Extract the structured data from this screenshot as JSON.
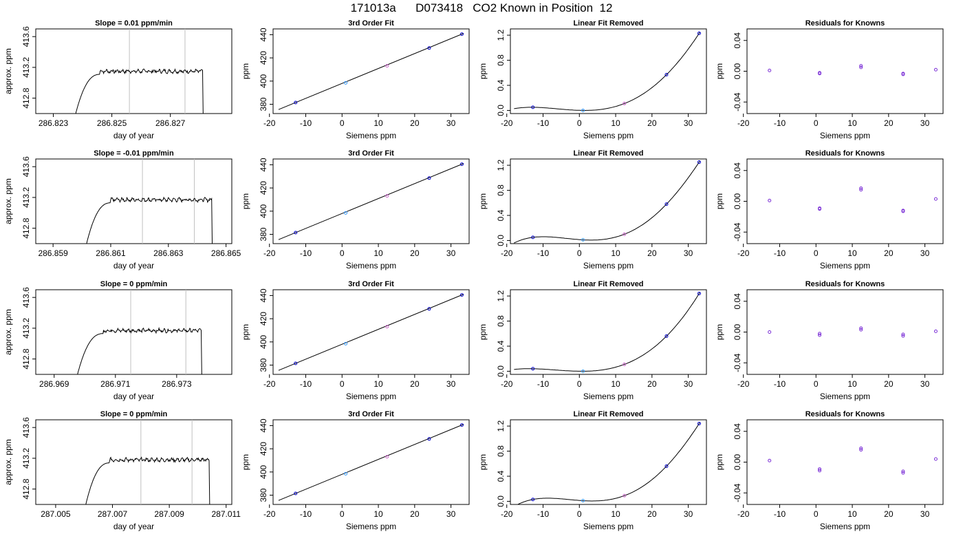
{
  "title": "171013a      D073418   CO2 Known in Position  12",
  "colors": {
    "trace": "#000000",
    "vline": "#c0c0c0",
    "known_blue": "#0000cc",
    "known_light": "#3399ff",
    "known_purple": "#7b2fd6",
    "known_pink": "#cc66cc",
    "residual": "#7b2fd6"
  },
  "chart_data": [
    {
      "type": "line",
      "row": 0,
      "col": 0,
      "title": "Slope =  0.01  ppm/min",
      "xlabel": "day of year",
      "ylabel": "approx. ppm",
      "xlim": [
        286.8224,
        286.8291
      ],
      "ylim": [
        412.6,
        413.7
      ],
      "xticks": [
        286.823,
        286.825,
        286.827
      ],
      "xtick_labels": [
        "286.823",
        "286.825",
        "286.827"
      ],
      "yticks": [
        412.8,
        413.2,
        413.6
      ],
      "ytick_labels": [
        "412.8",
        "413.2",
        "413.6"
      ],
      "vlines": [
        286.8256,
        286.8275
      ],
      "rise_start": 286.8237,
      "plateau_start": 286.8246,
      "fall": 286.8281,
      "plateau": 413.15
    },
    {
      "type": "line",
      "row": 0,
      "col": 1,
      "title": "3rd Order Fit",
      "xlabel": "Siemens ppm",
      "ylabel": "ppm",
      "xlim": [
        -19,
        35
      ],
      "ylim": [
        372,
        445
      ],
      "xticks": [
        -20,
        -10,
        0,
        10,
        20,
        30
      ],
      "xtick_labels": [
        "-20",
        "-10",
        "0",
        "10",
        "20",
        "30"
      ],
      "yticks": [
        380,
        400,
        420,
        440
      ],
      "ytick_labels": [
        "380",
        "400",
        "420",
        "440"
      ],
      "points": [
        {
          "x": -12.8,
          "y": 381.5
        },
        {
          "x": 1,
          "y": 398.5
        },
        {
          "x": 12.4,
          "y": 413.2
        },
        {
          "x": 24,
          "y": 428.5
        },
        {
          "x": 33,
          "y": 440.5
        }
      ],
      "fit": "linear"
    },
    {
      "type": "line",
      "row": 0,
      "col": 2,
      "title": "Linear Fit Removed",
      "xlabel": "Siemens ppm",
      "ylabel": "ppm",
      "xlim": [
        -19,
        35
      ],
      "ylim": [
        -0.05,
        1.3
      ],
      "xticks": [
        -20,
        -10,
        0,
        10,
        20,
        30
      ],
      "xtick_labels": [
        "-20",
        "-10",
        "0",
        "10",
        "20",
        "30"
      ],
      "yticks": [
        0,
        0.4,
        0.8,
        1.2
      ],
      "ytick_labels": [
        "0.0",
        "0.4",
        "0.8",
        "1.2"
      ],
      "points": [
        {
          "x": -12.8,
          "y": 0.05
        },
        {
          "x": 1,
          "y": 0.0
        },
        {
          "x": 12.4,
          "y": 0.11
        },
        {
          "x": 24,
          "y": 0.57
        },
        {
          "x": 33,
          "y": 1.23
        }
      ],
      "fit": "curve"
    },
    {
      "type": "scatter",
      "row": 0,
      "col": 3,
      "title": "Residuals for Knowns",
      "xlabel": "Siemens ppm",
      "ylabel": "ppm",
      "xlim": [
        -19,
        35
      ],
      "ylim": [
        -0.055,
        0.055
      ],
      "xticks": [
        -20,
        -10,
        0,
        10,
        20,
        30
      ],
      "xtick_labels": [
        "-20",
        "-10",
        "0",
        "10",
        "20",
        "30"
      ],
      "yticks": [
        -0.04,
        0,
        0.04
      ],
      "ytick_labels": [
        "-0.04",
        "0.00",
        "0.04"
      ],
      "points": [
        {
          "x": -12.8,
          "y": 0.001
        },
        {
          "x": 1,
          "y": -0.002
        },
        {
          "x": 1,
          "y": -0.003
        },
        {
          "x": 12.4,
          "y": 0.005
        },
        {
          "x": 12.4,
          "y": 0.007
        },
        {
          "x": 24,
          "y": -0.003
        },
        {
          "x": 24,
          "y": -0.004
        },
        {
          "x": 33,
          "y": 0.002
        }
      ]
    },
    {
      "type": "line",
      "row": 1,
      "col": 0,
      "title": "Slope =  -0.01  ppm/min",
      "xlabel": "day of year",
      "ylabel": "approx. ppm",
      "xlim": [
        286.8584,
        286.8652
      ],
      "ylim": [
        412.6,
        413.7
      ],
      "xticks": [
        286.859,
        286.861,
        286.863,
        286.865
      ],
      "xtick_labels": [
        "286.859",
        "286.861",
        "286.863",
        "286.865"
      ],
      "yticks": [
        412.8,
        413.2,
        413.6
      ],
      "ytick_labels": [
        "412.8",
        "413.2",
        "413.6"
      ],
      "vlines": [
        286.8621,
        286.8639
      ],
      "rise_start": 286.8601,
      "plateau_start": 286.861,
      "fall": 286.8645,
      "plateau": 413.17
    },
    {
      "type": "line",
      "row": 1,
      "col": 1,
      "title": "3rd Order Fit",
      "xlabel": "Siemens ppm",
      "ylabel": "ppm",
      "xlim": [
        -19,
        35
      ],
      "ylim": [
        372,
        445
      ],
      "xticks": [
        -20,
        -10,
        0,
        10,
        20,
        30
      ],
      "xtick_labels": [
        "-20",
        "-10",
        "0",
        "10",
        "20",
        "30"
      ],
      "yticks": [
        380,
        400,
        420,
        440
      ],
      "ytick_labels": [
        "380",
        "400",
        "420",
        "440"
      ],
      "points": [
        {
          "x": -12.8,
          "y": 381.5
        },
        {
          "x": 1,
          "y": 398.5
        },
        {
          "x": 12.4,
          "y": 413.2
        },
        {
          "x": 24,
          "y": 428.5
        },
        {
          "x": 33,
          "y": 440.5
        }
      ],
      "fit": "linear"
    },
    {
      "type": "line",
      "row": 1,
      "col": 2,
      "title": "Linear Fit Removed",
      "xlabel": "Siemens ppm",
      "ylabel": "ppm",
      "xlim": [
        -19,
        35
      ],
      "ylim": [
        -0.05,
        1.3
      ],
      "xticks": [
        -20,
        -10,
        0,
        10,
        20,
        30
      ],
      "xtick_labels": [
        "-20",
        "-10",
        "0",
        "10",
        "20",
        "30"
      ],
      "yticks": [
        0,
        0.4,
        0.8,
        1.2
      ],
      "ytick_labels": [
        "0.0",
        "0.4",
        "0.8",
        "1.2"
      ],
      "points": [
        {
          "x": -12.8,
          "y": 0.05
        },
        {
          "x": 1,
          "y": 0.01
        },
        {
          "x": 12.4,
          "y": 0.1
        },
        {
          "x": 24,
          "y": 0.58
        },
        {
          "x": 33,
          "y": 1.25
        }
      ],
      "fit": "curve"
    },
    {
      "type": "scatter",
      "row": 1,
      "col": 3,
      "title": "Residuals for Knowns",
      "xlabel": "Siemens ppm",
      "ylabel": "ppm",
      "xlim": [
        -19,
        35
      ],
      "ylim": [
        -0.055,
        0.055
      ],
      "xticks": [
        -20,
        -10,
        0,
        10,
        20,
        30
      ],
      "xtick_labels": [
        "-20",
        "-10",
        "0",
        "10",
        "20",
        "30"
      ],
      "yticks": [
        -0.04,
        0,
        0.04
      ],
      "ytick_labels": [
        "-0.04",
        "0.00",
        "0.04"
      ],
      "points": [
        {
          "x": -12.8,
          "y": 0.001
        },
        {
          "x": 1,
          "y": -0.009
        },
        {
          "x": 1,
          "y": -0.01
        },
        {
          "x": 12.4,
          "y": 0.015
        },
        {
          "x": 12.4,
          "y": 0.017
        },
        {
          "x": 24,
          "y": -0.012
        },
        {
          "x": 24,
          "y": -0.013
        },
        {
          "x": 33,
          "y": 0.003
        }
      ]
    },
    {
      "type": "line",
      "row": 2,
      "col": 0,
      "title": "Slope =  0  ppm/min",
      "xlabel": "day of year",
      "ylabel": "approx. ppm",
      "xlim": [
        286.9684,
        286.9748
      ],
      "ylim": [
        412.6,
        413.7
      ],
      "xticks": [
        286.969,
        286.971,
        286.973
      ],
      "xtick_labels": [
        "286.969",
        "286.971",
        "286.973"
      ],
      "yticks": [
        412.8,
        413.2,
        413.6
      ],
      "ytick_labels": [
        "412.8",
        "413.2",
        "413.6"
      ],
      "vlines": [
        286.9715,
        286.9733
      ],
      "rise_start": 286.9697,
      "plateau_start": 286.9706,
      "fall": 286.9738,
      "plateau": 413.17
    },
    {
      "type": "line",
      "row": 2,
      "col": 1,
      "title": "3rd Order Fit",
      "xlabel": "Siemens ppm",
      "ylabel": "ppm",
      "xlim": [
        -19,
        35
      ],
      "ylim": [
        372,
        445
      ],
      "xticks": [
        -20,
        -10,
        0,
        10,
        20,
        30
      ],
      "xtick_labels": [
        "-20",
        "-10",
        "0",
        "10",
        "20",
        "30"
      ],
      "yticks": [
        380,
        400,
        420,
        440
      ],
      "ytick_labels": [
        "380",
        "400",
        "420",
        "440"
      ],
      "points": [
        {
          "x": -12.8,
          "y": 381.5
        },
        {
          "x": 1,
          "y": 398.5
        },
        {
          "x": 12.4,
          "y": 413.2
        },
        {
          "x": 24,
          "y": 428.5
        },
        {
          "x": 33,
          "y": 440.5
        }
      ],
      "fit": "linear"
    },
    {
      "type": "line",
      "row": 2,
      "col": 2,
      "title": "Linear Fit Removed",
      "xlabel": "Siemens ppm",
      "ylabel": "ppm",
      "xlim": [
        -19,
        35
      ],
      "ylim": [
        -0.05,
        1.3
      ],
      "xticks": [
        -20,
        -10,
        0,
        10,
        20,
        30
      ],
      "xtick_labels": [
        "-20",
        "-10",
        "0",
        "10",
        "20",
        "30"
      ],
      "yticks": [
        0,
        0.4,
        0.8,
        1.2
      ],
      "ytick_labels": [
        "0.0",
        "0.4",
        "0.8",
        "1.2"
      ],
      "points": [
        {
          "x": -12.8,
          "y": 0.04
        },
        {
          "x": 1,
          "y": 0.0
        },
        {
          "x": 12.4,
          "y": 0.11
        },
        {
          "x": 24,
          "y": 0.56
        },
        {
          "x": 33,
          "y": 1.24
        }
      ],
      "fit": "curve"
    },
    {
      "type": "scatter",
      "row": 2,
      "col": 3,
      "title": "Residuals for Knowns",
      "xlabel": "Siemens ppm",
      "ylabel": "ppm",
      "xlim": [
        -19,
        35
      ],
      "ylim": [
        -0.055,
        0.055
      ],
      "xticks": [
        -20,
        -10,
        0,
        10,
        20,
        30
      ],
      "xtick_labels": [
        "-20",
        "-10",
        "0",
        "10",
        "20",
        "30"
      ],
      "yticks": [
        -0.04,
        0,
        0.04
      ],
      "ytick_labels": [
        "-0.04",
        "0.00",
        "0.04"
      ],
      "points": [
        {
          "x": -12.8,
          "y": 0.0
        },
        {
          "x": 1,
          "y": -0.002
        },
        {
          "x": 1,
          "y": -0.004
        },
        {
          "x": 12.4,
          "y": 0.003
        },
        {
          "x": 12.4,
          "y": 0.005
        },
        {
          "x": 24,
          "y": -0.003
        },
        {
          "x": 24,
          "y": -0.005
        },
        {
          "x": 33,
          "y": 0.001
        }
      ]
    },
    {
      "type": "line",
      "row": 3,
      "col": 0,
      "title": "Slope =  0  ppm/min",
      "xlabel": "day of year",
      "ylabel": "approx. ppm",
      "xlim": [
        287.0043,
        287.0112
      ],
      "ylim": [
        412.6,
        413.7
      ],
      "xticks": [
        287.005,
        287.007,
        287.009,
        287.011
      ],
      "xtick_labels": [
        "287.005",
        "287.007",
        "287.009",
        "287.011"
      ],
      "yticks": [
        412.8,
        413.2,
        413.6
      ],
      "ytick_labels": [
        "412.8",
        "413.2",
        "413.6"
      ],
      "vlines": [
        287.008,
        287.0098
      ],
      "rise_start": 287.006,
      "plateau_start": 287.0069,
      "fall": 287.0104,
      "plateau": 413.18
    },
    {
      "type": "line",
      "row": 3,
      "col": 1,
      "title": "3rd Order Fit",
      "xlabel": "Siemens ppm",
      "ylabel": "ppm",
      "xlim": [
        -19,
        35
      ],
      "ylim": [
        372,
        445
      ],
      "xticks": [
        -20,
        -10,
        0,
        10,
        20,
        30
      ],
      "xtick_labels": [
        "-20",
        "-10",
        "0",
        "10",
        "20",
        "30"
      ],
      "yticks": [
        380,
        400,
        420,
        440
      ],
      "ytick_labels": [
        "380",
        "400",
        "420",
        "440"
      ],
      "points": [
        {
          "x": -12.8,
          "y": 381.5
        },
        {
          "x": 1,
          "y": 398.5
        },
        {
          "x": 12.4,
          "y": 413.2
        },
        {
          "x": 24,
          "y": 428.5
        },
        {
          "x": 33,
          "y": 440.5
        }
      ],
      "fit": "linear"
    },
    {
      "type": "line",
      "row": 3,
      "col": 2,
      "title": "Linear Fit Removed",
      "xlabel": "Siemens ppm",
      "ylabel": "ppm",
      "xlim": [
        -19,
        35
      ],
      "ylim": [
        -0.05,
        1.3
      ],
      "xticks": [
        -20,
        -10,
        0,
        10,
        20,
        30
      ],
      "xtick_labels": [
        "-20",
        "-10",
        "0",
        "10",
        "20",
        "30"
      ],
      "yticks": [
        0,
        0.4,
        0.8,
        1.2
      ],
      "ytick_labels": [
        "0.0",
        "0.4",
        "0.8",
        "1.2"
      ],
      "points": [
        {
          "x": -12.8,
          "y": 0.03
        },
        {
          "x": 1,
          "y": 0.01
        },
        {
          "x": 12.4,
          "y": 0.09
        },
        {
          "x": 24,
          "y": 0.56
        },
        {
          "x": 33,
          "y": 1.24
        }
      ],
      "fit": "curve"
    },
    {
      "type": "scatter",
      "row": 3,
      "col": 3,
      "title": "Residuals for Knowns",
      "xlabel": "Siemens ppm",
      "ylabel": "ppm",
      "xlim": [
        -19,
        35
      ],
      "ylim": [
        -0.055,
        0.055
      ],
      "xticks": [
        -20,
        -10,
        0,
        10,
        20,
        30
      ],
      "xtick_labels": [
        "-20",
        "-10",
        "0",
        "10",
        "20",
        "30"
      ],
      "yticks": [
        -0.04,
        0,
        0.04
      ],
      "ytick_labels": [
        "-0.04",
        "0.00",
        "0.04"
      ],
      "points": [
        {
          "x": -12.8,
          "y": 0.002
        },
        {
          "x": 1,
          "y": -0.009
        },
        {
          "x": 1,
          "y": -0.011
        },
        {
          "x": 12.4,
          "y": 0.016
        },
        {
          "x": 12.4,
          "y": 0.018
        },
        {
          "x": 24,
          "y": -0.012
        },
        {
          "x": 24,
          "y": -0.014
        },
        {
          "x": 33,
          "y": 0.004
        }
      ]
    }
  ]
}
